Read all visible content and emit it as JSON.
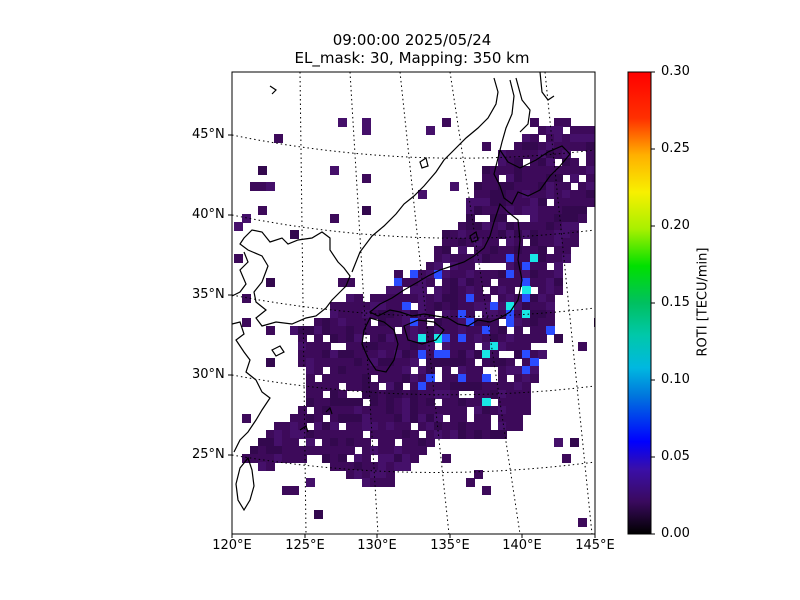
{
  "title": {
    "line1": "09:00:00 2025/05/24",
    "line2": "EL_mask: 30, Mapping: 350 km"
  },
  "map": {
    "lon_range": [
      120,
      145
    ],
    "lat_range": [
      20,
      49
    ],
    "lat_ticks": [
      "45°N",
      "40°N",
      "35°N",
      "30°N",
      "25°N"
    ],
    "lon_ticks": [
      "120°E",
      "125°E",
      "130°E",
      "135°E",
      "140°E",
      "145°E"
    ],
    "graticule": "dotted",
    "coastline_color": "#000000"
  },
  "colorbar": {
    "label": "ROTI [TECU/min]",
    "ticks": [
      "0.00",
      "0.05",
      "0.10",
      "0.15",
      "0.20",
      "0.25",
      "0.30"
    ],
    "range": [
      0,
      0.3
    ],
    "colormap": "nipy_spectral-like"
  },
  "colors": {
    "background_pixel": "#3d0a5a",
    "enhanced_pixel": "#2a4cff",
    "high_pixel": "#19e6e6"
  }
}
